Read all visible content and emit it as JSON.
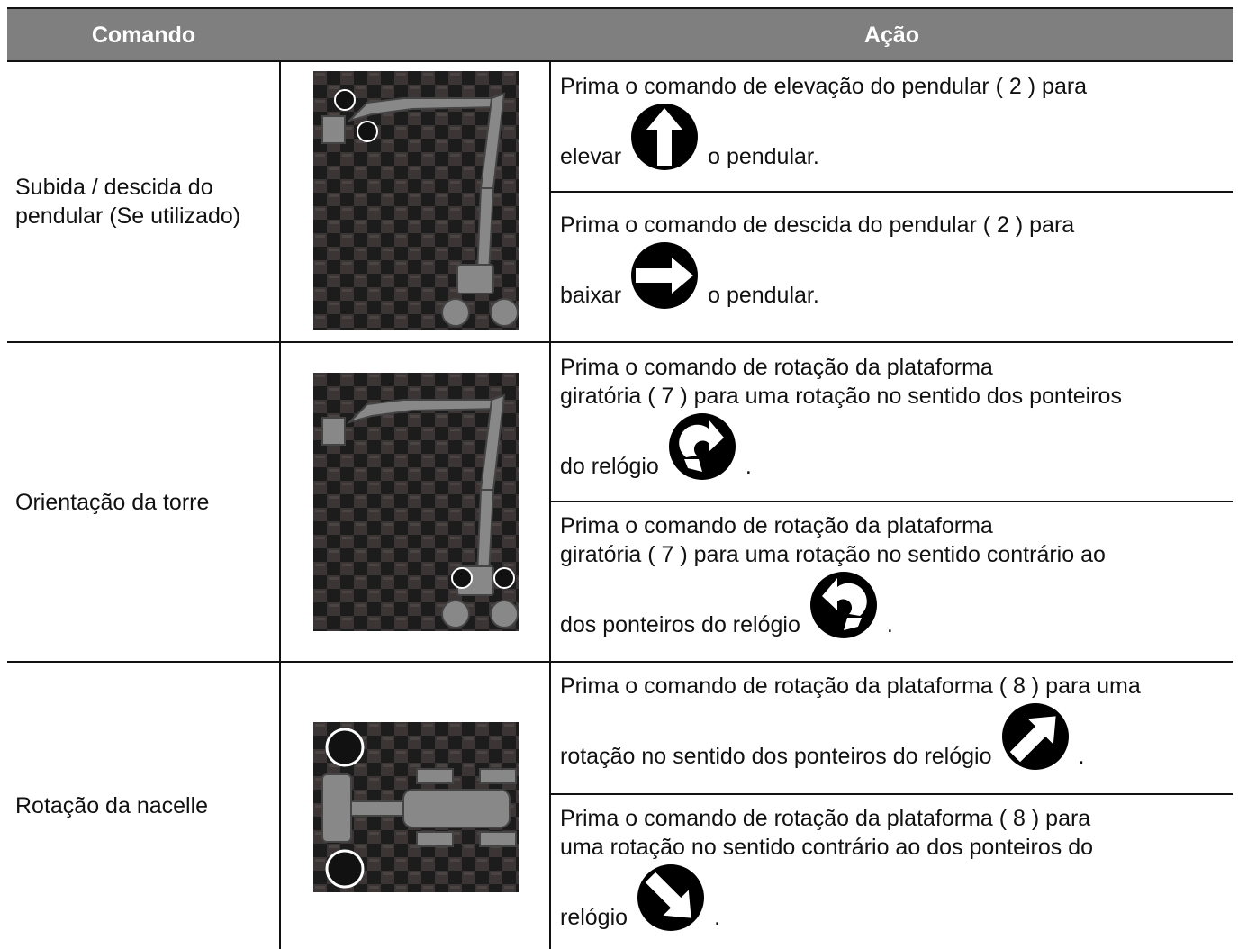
{
  "table": {
    "header": [
      "Comando",
      "Ação"
    ],
    "rows": [
      {
        "command_lines": [
          "Subida / descida do",
          "pendular (Se utilizado)"
        ],
        "actions": [
          {
            "text_lines": [
              "Prima o comando de elevação do pendular ( 2 ) para"
            ],
            "before_icon": "elevar",
            "after_icon": "o pendular."
          },
          {
            "text_lines": [
              "Prima o comando de descida do pendular ( 2 ) para"
            ],
            "before_icon": "baixar",
            "after_icon": "o pendular."
          }
        ]
      },
      {
        "command_lines": [
          "Orientação da torre"
        ],
        "actions": [
          {
            "text_lines": [
              "Prima o comando de rotação da plataforma",
              "giratória ( 7 ) para uma rotação no sentido dos ponteiros"
            ],
            "before_icon": "do relógio",
            "after_icon": "."
          },
          {
            "text_lines": [
              "Prima o comando de rotação da plataforma",
              "giratória ( 7 ) para uma rotação no sentido contrário ao"
            ],
            "before_icon": "dos ponteiros do relógio",
            "after_icon": "."
          }
        ]
      },
      {
        "command_lines": [
          "Rotação da nacelle"
        ],
        "actions": [
          {
            "text_lines": [
              "Prima o comando de rotação da plataforma ( 8 ) para uma"
            ],
            "before_icon": "rotação no sentido dos ponteiros do relógio",
            "after_icon": "."
          },
          {
            "text_lines": [
              "Prima o comando de rotação da plataforma ( 8 ) para",
              "uma rotação no sentido contrário ao dos ponteiros do"
            ],
            "before_icon": "relógio",
            "after_icon": "."
          }
        ]
      }
    ]
  }
}
